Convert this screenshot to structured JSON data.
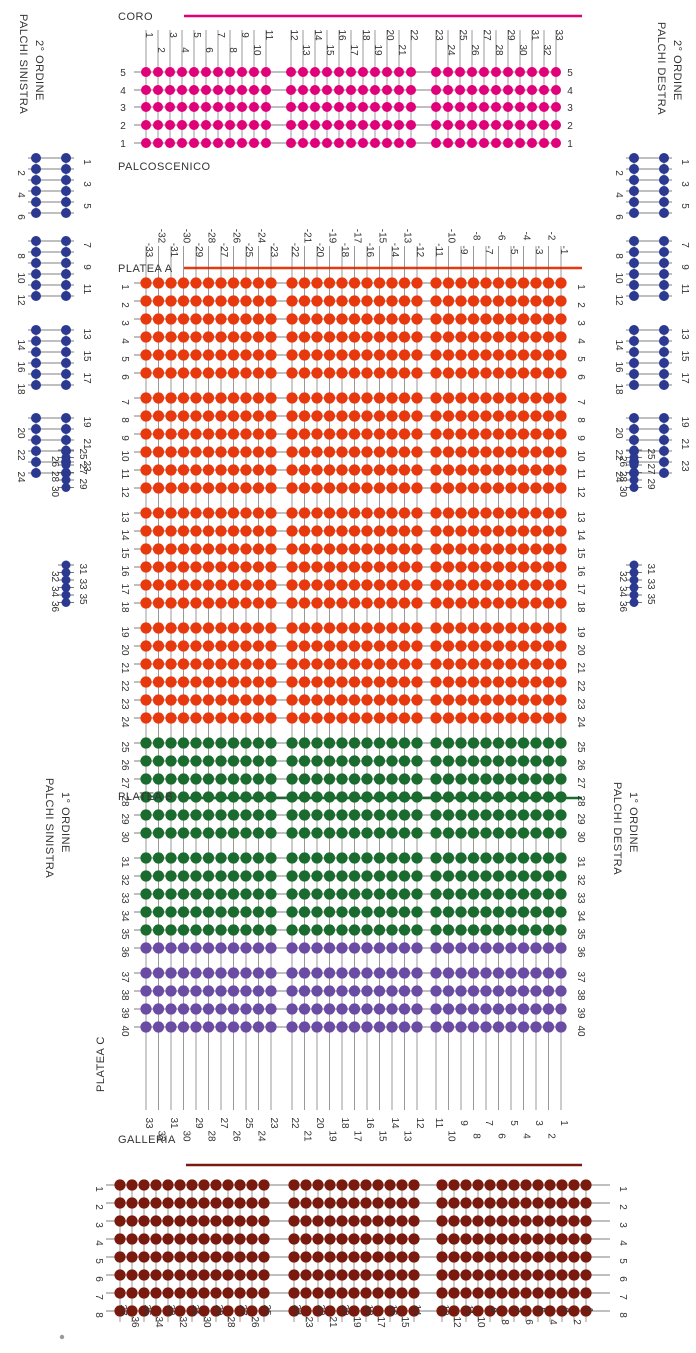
{
  "colors": {
    "coro": "#e0007a",
    "platea_a": "#e8380d",
    "platea_b": "#1a6b2e",
    "platea_c": "#6a4ca5",
    "galleria": "#7a1a0e",
    "palchi": "#2b3990",
    "line": "#555555"
  },
  "sections": {
    "coro": "CORO",
    "palcoscenico": "PALCOSCENICO",
    "platea_a": "PLATEA A",
    "platea_b": "PLATEA B",
    "platea_c": "PLATEA C",
    "galleria": "GALLERIA"
  },
  "boxes": {
    "second_left": [
      "2° ORDINE",
      "PALCHI SINISTRA"
    ],
    "second_right": [
      "2° ORDINE",
      "PALCHI DESTRA"
    ],
    "first_left": [
      "1° ORDINE",
      "PALCHI SINISTRA"
    ],
    "first_right": [
      "1° ORDINE",
      "PALCHI DESTRA"
    ]
  },
  "coro": {
    "rows": [
      "5",
      "4",
      "3",
      "2",
      "1"
    ],
    "seats_left": [
      "1",
      "2",
      "3",
      "4",
      "5",
      "6",
      "7",
      "8",
      "9",
      "10",
      "11"
    ],
    "seats_center": [
      "12",
      "13",
      "14",
      "15",
      "16",
      "17",
      "18",
      "19",
      "20",
      "21",
      "22"
    ],
    "seats_right": [
      "23",
      "24",
      "25",
      "26",
      "27",
      "28",
      "29",
      "30",
      "31",
      "32",
      "33"
    ]
  },
  "platea": {
    "rows_a": [
      "1",
      "2",
      "3",
      "4",
      "5",
      "6",
      "7",
      "8",
      "9",
      "10",
      "11",
      "12",
      "13",
      "14",
      "15",
      "16",
      "17",
      "18",
      "19",
      "20",
      "21",
      "22",
      "23",
      "24"
    ],
    "rows_b": [
      "25",
      "26",
      "27",
      "28",
      "29",
      "30",
      "31",
      "32",
      "33",
      "34",
      "35"
    ],
    "rows_c": [
      "36",
      "37",
      "38",
      "39",
      "40"
    ],
    "seats_left": [
      "-33",
      "-32",
      "-31",
      "-30",
      "-29",
      "-28",
      "-27",
      "-26",
      "-25",
      "-24",
      "-23"
    ],
    "seats_center": [
      "-22",
      "-21",
      "-20",
      "-19",
      "-18",
      "-17",
      "-16",
      "-15",
      "-14",
      "-13",
      "-12"
    ],
    "seats_right": [
      "-11",
      "-10",
      "-9",
      "-8",
      "-7",
      "-6",
      "-5",
      "-4",
      "-3",
      "-2",
      "-1"
    ],
    "seats_bottom_left": [
      "33",
      "32",
      "31",
      "30",
      "29",
      "28",
      "27",
      "26",
      "25",
      "24",
      "23"
    ],
    "seats_bottom_center": [
      "22",
      "21",
      "20",
      "19",
      "18",
      "17",
      "16",
      "15",
      "14",
      "13",
      "12"
    ],
    "seats_bottom_right": [
      "11",
      "10",
      "9",
      "8",
      "7",
      "6",
      "5",
      "4",
      "3",
      "2",
      "1"
    ]
  },
  "galleria": {
    "rows": [
      "1",
      "2",
      "3",
      "4",
      "5",
      "6",
      "7",
      "8"
    ],
    "seats_left": [
      "37",
      "36",
      "35",
      "34",
      "33",
      "32",
      "31",
      "30",
      "29",
      "28",
      "27",
      "26",
      "25"
    ],
    "seats_center": [
      "24",
      "23",
      "22",
      "21",
      "20",
      "19",
      "18",
      "17",
      "16",
      "15",
      "14"
    ],
    "seats_right": [
      "13",
      "12",
      "11",
      "10",
      "9",
      "8",
      "7",
      "6",
      "5",
      "4",
      "3",
      "2",
      "1"
    ]
  },
  "palchi_second": [
    "1",
    "2",
    "3",
    "4",
    "5",
    "6",
    "7",
    "8",
    "9",
    "10",
    "11",
    "12",
    "13",
    "14",
    "15",
    "16",
    "17",
    "18",
    "19",
    "20",
    "21",
    "22",
    "23",
    "24"
  ],
  "palchi_first": [
    "25",
    "26",
    "27",
    "28",
    "29",
    "30",
    "31",
    "32",
    "33",
    "34",
    "35",
    "36"
  ]
}
